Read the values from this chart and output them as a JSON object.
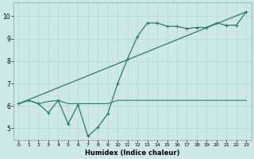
{
  "title": "",
  "xlabel": "Humidex (Indice chaleur)",
  "bg_color": "#cce8e8",
  "grid_color": "#b8d8d8",
  "line_color": "#2a7a6a",
  "xlim": [
    -0.5,
    23.5
  ],
  "ylim": [
    4.5,
    10.6
  ],
  "xticks": [
    0,
    1,
    2,
    3,
    4,
    5,
    6,
    7,
    8,
    9,
    10,
    11,
    12,
    13,
    14,
    15,
    16,
    17,
    18,
    19,
    20,
    21,
    22,
    23
  ],
  "yticks": [
    5,
    6,
    7,
    8,
    9,
    10
  ],
  "line1_x": [
    0,
    1,
    2,
    3,
    4,
    5,
    6,
    7,
    8,
    9,
    10,
    11,
    12,
    13,
    14,
    15,
    16,
    17,
    18,
    19,
    20,
    21,
    22,
    23
  ],
  "line1_y": [
    6.1,
    6.25,
    6.1,
    6.2,
    6.25,
    6.1,
    6.1,
    6.1,
    6.1,
    6.1,
    6.25,
    6.25,
    6.25,
    6.25,
    6.25,
    6.25,
    6.25,
    6.25,
    6.25,
    6.25,
    6.25,
    6.25,
    6.25,
    6.25
  ],
  "line2_x": [
    0,
    1,
    2,
    3,
    4,
    5,
    6,
    7,
    8,
    9,
    10,
    11,
    12,
    13,
    14,
    15,
    16,
    17,
    18,
    19,
    20,
    21,
    22,
    23
  ],
  "line2_y": [
    6.1,
    6.25,
    6.1,
    5.7,
    6.25,
    5.2,
    6.05,
    4.65,
    5.05,
    5.65,
    7.0,
    8.1,
    9.1,
    9.7,
    9.7,
    9.55,
    9.55,
    9.45,
    9.5,
    9.5,
    9.7,
    9.6,
    9.6,
    10.2
  ],
  "line3_x": [
    0,
    23
  ],
  "line3_y": [
    6.1,
    10.2
  ]
}
